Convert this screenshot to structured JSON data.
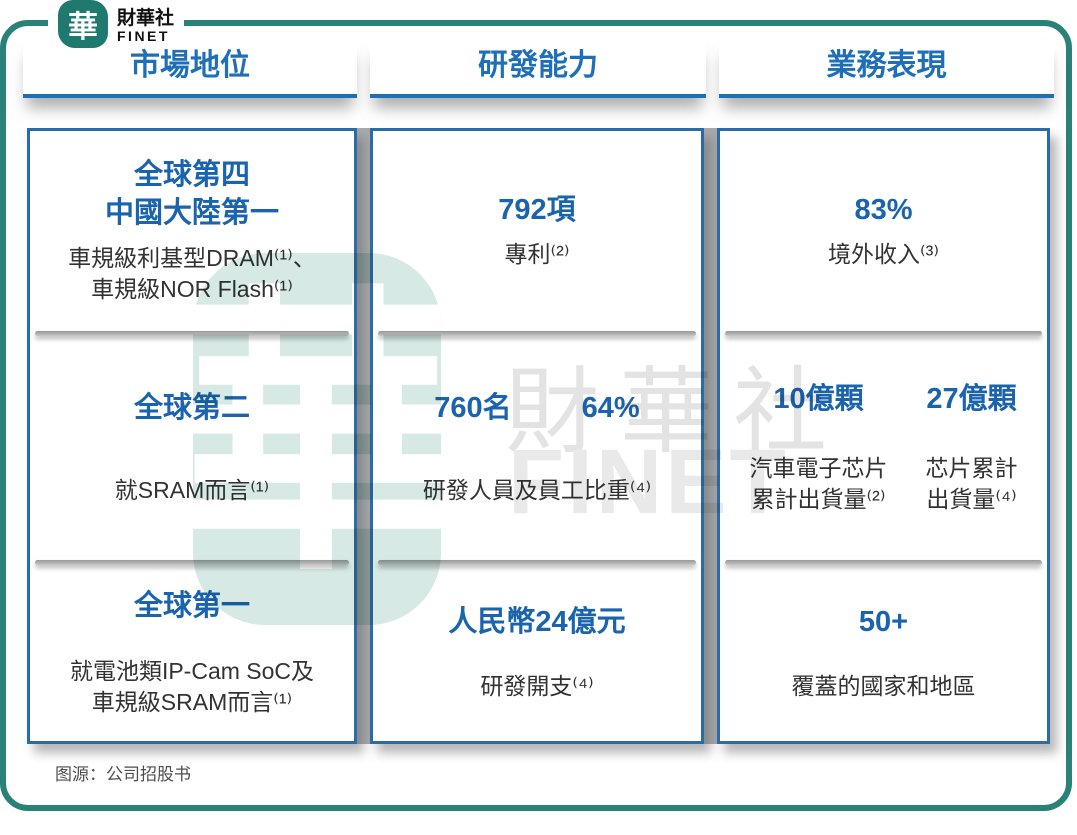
{
  "brand": {
    "logo_char": "華",
    "name_cn": "財華社",
    "name_en": "FINET"
  },
  "watermark": {
    "logo_char": "華",
    "text_cn": "財華社",
    "text_en": "FINET"
  },
  "columns": [
    {
      "header": "市場地位",
      "sections": [
        {
          "title": "全球第四\n中國大陸第一",
          "desc": "車規級利基型DRAM⁽¹⁾、\n車規級NOR Flash⁽¹⁾"
        },
        {
          "title": "全球第二",
          "desc": "就SRAM而言⁽¹⁾"
        },
        {
          "title": "全球第一",
          "desc": "就電池類IP-Cam SoC及\n車規級SRAM而言⁽¹⁾"
        }
      ]
    },
    {
      "header": "研發能力",
      "sections": [
        {
          "title": "792項",
          "desc": "專利⁽²⁾"
        },
        {
          "stats": [
            {
              "value": "760名"
            },
            {
              "value": "64%"
            }
          ],
          "desc": "研發人員及員工比重⁽⁴⁾"
        },
        {
          "title": "人民幣24億元",
          "desc": "研發開支⁽⁴⁾"
        }
      ]
    },
    {
      "header": "業務表現",
      "sections": [
        {
          "title": "83%",
          "desc": "境外收入⁽³⁾"
        },
        {
          "stats": [
            {
              "value": "10億顆",
              "label": "汽車電子芯片\n累計出貨量⁽²⁾"
            },
            {
              "value": "27億顆",
              "label": "芯片累計\n出貨量⁽⁴⁾"
            }
          ]
        },
        {
          "title": "50+",
          "desc": "覆蓋的國家和地區"
        }
      ]
    }
  ],
  "footer": {
    "source": "图源：公司招股书"
  },
  "colors": {
    "accent_blue": "#1e6fb8",
    "stat_blue": "#1a63ae",
    "teal": "#2a8178",
    "gap_gray": "#a8aaad"
  }
}
